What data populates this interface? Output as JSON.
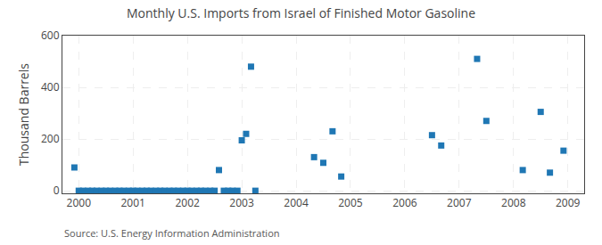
{
  "chart_data": {
    "type": "scatter",
    "title": "Monthly U.S. Imports from Israel of Finished Motor Gasoline",
    "ylabel": "Thousand Barrels",
    "annotations": [
      "Source: U.S. Energy Information Administration"
    ],
    "marker": "square",
    "grid": true,
    "xlim": [
      1999.7,
      2009.3
    ],
    "ylim": [
      -10,
      600
    ],
    "xticks": [
      2000,
      2001,
      2002,
      2003,
      2004,
      2005,
      2006,
      2007,
      2008,
      2009
    ],
    "yticks": [
      0,
      200,
      400,
      600
    ],
    "x": [
      1999.92,
      2000.0,
      2000.08,
      2000.17,
      2000.25,
      2000.33,
      2000.42,
      2000.5,
      2000.58,
      2000.67,
      2000.75,
      2000.83,
      2000.92,
      2001.0,
      2001.08,
      2001.17,
      2001.25,
      2001.33,
      2001.42,
      2001.5,
      2001.58,
      2001.67,
      2001.75,
      2001.83,
      2001.92,
      2002.0,
      2002.08,
      2002.17,
      2002.25,
      2002.33,
      2002.42,
      2002.5,
      2002.58,
      2002.67,
      2002.75,
      2002.83,
      2002.92,
      2003.0,
      2003.08,
      2003.17,
      2003.25,
      2004.33,
      2004.5,
      2004.67,
      2004.83,
      2006.5,
      2006.67,
      2007.33,
      2007.5,
      2008.17,
      2008.5,
      2008.67,
      2008.92
    ],
    "values": [
      90,
      0,
      0,
      0,
      0,
      0,
      0,
      0,
      0,
      0,
      0,
      0,
      0,
      0,
      0,
      0,
      0,
      0,
      0,
      0,
      0,
      0,
      0,
      0,
      0,
      0,
      0,
      0,
      0,
      0,
      0,
      0,
      80,
      0,
      0,
      0,
      0,
      195,
      220,
      480,
      0,
      130,
      108,
      230,
      55,
      215,
      175,
      510,
      270,
      80,
      305,
      70,
      155
    ]
  }
}
